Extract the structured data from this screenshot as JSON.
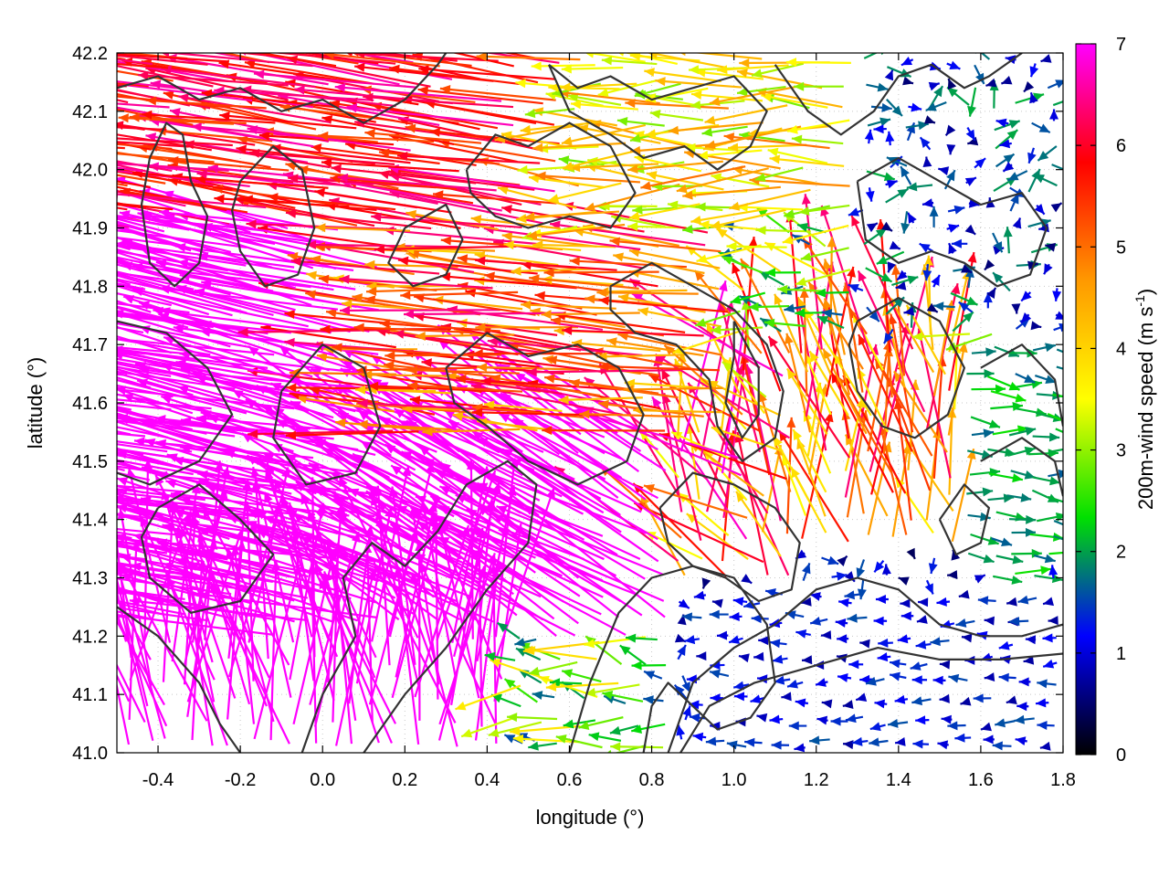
{
  "chart_data": {
    "type": "vector-field",
    "xlabel": "longitude (°)",
    "ylabel": "latitude (°)",
    "xlim": [
      -0.5,
      1.8
    ],
    "ylim": [
      41.0,
      42.2
    ],
    "xticks": [
      -0.4,
      -0.2,
      0.0,
      0.2,
      0.4,
      0.6,
      0.8,
      1.0,
      1.2,
      1.4,
      1.6,
      1.8
    ],
    "xtick_labels": [
      "-0.4",
      "-0.2",
      "0.0",
      "0.2",
      "0.4",
      "0.6",
      "0.8",
      "1.0",
      "1.2",
      "1.4",
      "1.6",
      "1.8"
    ],
    "yticks": [
      41.0,
      41.1,
      41.2,
      41.3,
      41.4,
      41.5,
      41.6,
      41.7,
      41.8,
      41.9,
      42.0,
      42.1,
      42.2
    ],
    "ytick_labels": [
      "41.0",
      "41.1",
      "41.2",
      "41.3",
      "41.4",
      "41.5",
      "41.6",
      "41.7",
      "41.8",
      "41.9",
      "42.0",
      "42.1",
      "42.2"
    ],
    "grid": true,
    "colorbar": {
      "label_main": "200m-wind speed (m s",
      "label_sup": "-1",
      "label_close": ")",
      "range": [
        0,
        7
      ],
      "ticks": [
        0,
        1,
        2,
        3,
        4,
        5,
        6,
        7
      ],
      "tick_labels": [
        "0",
        "1",
        "2",
        "3",
        "4",
        "5",
        "6",
        "7"
      ],
      "colors": [
        "#000000",
        "#0000ff",
        "#00e000",
        "#ffff00",
        "#ff9900",
        "#ff0000",
        "#ff00ff"
      ]
    },
    "contour_color": "#333333",
    "vector_regions": [
      {
        "region": "west, north of 41.9",
        "speed_ms": 5.5,
        "direction": "west"
      },
      {
        "region": "west and southwest, below 41.9",
        "speed_ms": 7,
        "direction": "west-northwest"
      },
      {
        "region": "centre 0.2 to 0.9, 41.6 to 42.2",
        "speed_ms": 4,
        "direction": "west"
      },
      {
        "region": "east of 1.3, north of 41.6",
        "speed_ms": 1.5,
        "direction": "variable"
      },
      {
        "region": "1.2 to 1.5, 41.4 to 41.7",
        "speed_ms": 5,
        "direction": "north-northwest"
      },
      {
        "region": "southeast, south of 41.3",
        "speed_ms": 1,
        "direction": "west"
      },
      {
        "region": "southwest corner, south of 41.2",
        "speed_ms": 7,
        "direction": "north"
      }
    ],
    "contours": [
      [
        [
          -0.42,
          42.02
        ],
        [
          -0.38,
          42.08
        ],
        [
          -0.34,
          42.06
        ],
        [
          -0.32,
          41.98
        ],
        [
          -0.28,
          41.92
        ],
        [
          -0.3,
          41.84
        ],
        [
          -0.36,
          41.8
        ],
        [
          -0.42,
          41.84
        ],
        [
          -0.44,
          41.94
        ],
        [
          -0.42,
          42.02
        ]
      ],
      [
        [
          -0.2,
          41.98
        ],
        [
          -0.12,
          42.04
        ],
        [
          -0.05,
          42.0
        ],
        [
          -0.02,
          41.9
        ],
        [
          -0.06,
          41.82
        ],
        [
          -0.14,
          41.8
        ],
        [
          -0.2,
          41.86
        ],
        [
          -0.22,
          41.93
        ],
        [
          -0.2,
          41.98
        ]
      ],
      [
        [
          -0.5,
          41.74
        ],
        [
          -0.38,
          41.72
        ],
        [
          -0.28,
          41.66
        ],
        [
          -0.22,
          41.58
        ],
        [
          -0.3,
          41.5
        ],
        [
          -0.42,
          41.46
        ],
        [
          -0.5,
          41.48
        ]
      ],
      [
        [
          -0.4,
          41.42
        ],
        [
          -0.3,
          41.46
        ],
        [
          -0.2,
          41.4
        ],
        [
          -0.12,
          41.34
        ],
        [
          -0.2,
          41.26
        ],
        [
          -0.32,
          41.24
        ],
        [
          -0.42,
          41.3
        ],
        [
          -0.44,
          41.37
        ],
        [
          -0.4,
          41.42
        ]
      ],
      [
        [
          -0.1,
          41.62
        ],
        [
          0.0,
          41.7
        ],
        [
          0.1,
          41.66
        ],
        [
          0.14,
          41.56
        ],
        [
          0.08,
          41.48
        ],
        [
          -0.04,
          41.46
        ],
        [
          -0.12,
          41.54
        ],
        [
          -0.1,
          41.62
        ]
      ],
      [
        [
          -0.5,
          41.25
        ],
        [
          -0.4,
          41.2
        ],
        [
          -0.3,
          41.12
        ],
        [
          -0.25,
          41.05
        ],
        [
          -0.2,
          41.0
        ]
      ],
      [
        [
          0.1,
          41.0
        ],
        [
          0.2,
          41.1
        ],
        [
          0.3,
          41.18
        ],
        [
          0.4,
          41.28
        ],
        [
          0.5,
          41.36
        ],
        [
          0.52,
          41.46
        ],
        [
          0.45,
          41.5
        ],
        [
          0.35,
          41.46
        ],
        [
          0.28,
          41.38
        ],
        [
          0.2,
          41.32
        ],
        [
          0.12,
          41.36
        ],
        [
          0.05,
          41.3
        ],
        [
          0.08,
          41.2
        ],
        [
          0.0,
          41.1
        ],
        [
          -0.05,
          41.0
        ]
      ],
      [
        [
          0.6,
          41.0
        ],
        [
          0.65,
          41.12
        ],
        [
          0.72,
          41.24
        ],
        [
          0.8,
          41.3
        ],
        [
          0.9,
          41.32
        ],
        [
          1.0,
          41.3
        ],
        [
          1.08,
          41.22
        ],
        [
          1.1,
          41.12
        ],
        [
          1.04,
          41.06
        ],
        [
          0.96,
          41.04
        ],
        [
          0.9,
          41.08
        ],
        [
          0.84,
          41.12
        ],
        [
          0.8,
          41.08
        ],
        [
          0.78,
          41.0
        ]
      ],
      [
        [
          0.84,
          41.0
        ],
        [
          0.9,
          41.12
        ],
        [
          1.0,
          41.18
        ],
        [
          1.1,
          41.22
        ],
        [
          1.2,
          41.28
        ],
        [
          1.3,
          41.3
        ],
        [
          1.4,
          41.28
        ],
        [
          1.5,
          41.22
        ],
        [
          1.6,
          41.2
        ],
        [
          1.7,
          41.2
        ],
        [
          1.8,
          41.22
        ]
      ],
      [
        [
          0.87,
          41.0
        ],
        [
          0.94,
          41.08
        ],
        [
          1.05,
          41.12
        ],
        [
          1.2,
          41.15
        ],
        [
          1.35,
          41.18
        ],
        [
          1.5,
          41.16
        ],
        [
          1.65,
          41.16
        ],
        [
          1.8,
          41.17
        ]
      ],
      [
        [
          0.3,
          41.66
        ],
        [
          0.4,
          41.72
        ],
        [
          0.5,
          41.68
        ],
        [
          0.62,
          41.7
        ],
        [
          0.72,
          41.66
        ],
        [
          0.78,
          41.58
        ],
        [
          0.74,
          41.5
        ],
        [
          0.62,
          41.46
        ],
        [
          0.5,
          41.5
        ],
        [
          0.4,
          41.56
        ],
        [
          0.32,
          41.6
        ],
        [
          0.3,
          41.66
        ]
      ],
      [
        [
          0.7,
          41.8
        ],
        [
          0.8,
          41.84
        ],
        [
          0.9,
          41.8
        ],
        [
          1.0,
          41.76
        ],
        [
          1.08,
          41.7
        ],
        [
          1.12,
          41.62
        ],
        [
          1.1,
          41.54
        ],
        [
          1.02,
          41.5
        ],
        [
          0.96,
          41.56
        ],
        [
          0.94,
          41.64
        ],
        [
          0.86,
          41.7
        ],
        [
          0.76,
          41.72
        ],
        [
          0.7,
          41.76
        ],
        [
          0.7,
          41.8
        ]
      ],
      [
        [
          1.0,
          41.74
        ],
        [
          1.06,
          41.66
        ],
        [
          1.06,
          41.58
        ],
        [
          1.02,
          41.54
        ],
        [
          0.98,
          41.6
        ],
        [
          1.0,
          41.68
        ],
        [
          1.0,
          41.74
        ]
      ],
      [
        [
          0.35,
          42.0
        ],
        [
          0.42,
          42.06
        ],
        [
          0.5,
          42.04
        ],
        [
          0.6,
          42.08
        ],
        [
          0.7,
          42.04
        ],
        [
          0.76,
          41.96
        ],
        [
          0.7,
          41.9
        ],
        [
          0.6,
          41.92
        ],
        [
          0.5,
          41.9
        ],
        [
          0.42,
          41.92
        ],
        [
          0.36,
          41.96
        ],
        [
          0.35,
          42.0
        ]
      ],
      [
        [
          0.55,
          42.18
        ],
        [
          0.62,
          42.14
        ],
        [
          0.7,
          42.16
        ],
        [
          0.8,
          42.12
        ],
        [
          0.9,
          42.14
        ],
        [
          1.0,
          42.16
        ],
        [
          1.08,
          42.1
        ],
        [
          1.04,
          42.04
        ],
        [
          0.96,
          42.0
        ],
        [
          0.88,
          42.04
        ],
        [
          0.78,
          42.02
        ],
        [
          0.7,
          42.06
        ],
        [
          0.6,
          42.1
        ],
        [
          0.55,
          42.18
        ]
      ],
      [
        [
          1.1,
          42.18
        ],
        [
          1.18,
          42.1
        ],
        [
          1.26,
          42.06
        ],
        [
          1.34,
          42.1
        ],
        [
          1.4,
          42.16
        ],
        [
          1.48,
          42.18
        ],
        [
          1.56,
          42.14
        ],
        [
          1.62,
          42.16
        ],
        [
          1.7,
          42.2
        ]
      ],
      [
        [
          1.3,
          41.98
        ],
        [
          1.4,
          42.02
        ],
        [
          1.5,
          41.98
        ],
        [
          1.6,
          41.94
        ],
        [
          1.7,
          41.96
        ],
        [
          1.76,
          41.9
        ],
        [
          1.72,
          41.82
        ],
        [
          1.64,
          41.8
        ],
        [
          1.56,
          41.84
        ],
        [
          1.48,
          41.86
        ],
        [
          1.4,
          41.84
        ],
        [
          1.32,
          41.88
        ],
        [
          1.3,
          41.98
        ]
      ],
      [
        [
          1.3,
          41.74
        ],
        [
          1.4,
          41.78
        ],
        [
          1.5,
          41.74
        ],
        [
          1.56,
          41.66
        ],
        [
          1.52,
          41.58
        ],
        [
          1.44,
          41.54
        ],
        [
          1.36,
          41.56
        ],
        [
          1.3,
          41.62
        ],
        [
          1.28,
          41.7
        ],
        [
          1.3,
          41.74
        ]
      ],
      [
        [
          1.6,
          41.66
        ],
        [
          1.7,
          41.7
        ],
        [
          1.78,
          41.64
        ],
        [
          1.8,
          41.56
        ]
      ],
      [
        [
          1.6,
          41.5
        ],
        [
          1.7,
          41.54
        ],
        [
          1.78,
          41.5
        ],
        [
          1.8,
          41.44
        ]
      ],
      [
        [
          1.5,
          41.4
        ],
        [
          1.56,
          41.46
        ],
        [
          1.62,
          41.42
        ],
        [
          1.6,
          41.36
        ],
        [
          1.54,
          41.34
        ],
        [
          1.5,
          41.4
        ]
      ],
      [
        [
          0.82,
          41.42
        ],
        [
          0.9,
          41.48
        ],
        [
          1.0,
          41.46
        ],
        [
          1.1,
          41.42
        ],
        [
          1.16,
          41.36
        ],
        [
          1.14,
          41.28
        ],
        [
          1.06,
          41.26
        ],
        [
          0.98,
          41.3
        ],
        [
          0.9,
          41.32
        ],
        [
          0.84,
          41.36
        ],
        [
          0.82,
          41.42
        ]
      ],
      [
        [
          0.2,
          41.9
        ],
        [
          0.3,
          41.94
        ],
        [
          0.34,
          41.88
        ],
        [
          0.3,
          41.82
        ],
        [
          0.22,
          41.8
        ],
        [
          0.16,
          41.84
        ],
        [
          0.2,
          41.9
        ]
      ],
      [
        [
          -0.5,
          42.14
        ],
        [
          -0.4,
          42.16
        ],
        [
          -0.3,
          42.12
        ],
        [
          -0.2,
          42.14
        ],
        [
          -0.1,
          42.1
        ],
        [
          0.0,
          42.12
        ],
        [
          0.1,
          42.08
        ],
        [
          0.2,
          42.12
        ],
        [
          0.28,
          42.18
        ],
        [
          0.3,
          42.2
        ]
      ]
    ]
  }
}
